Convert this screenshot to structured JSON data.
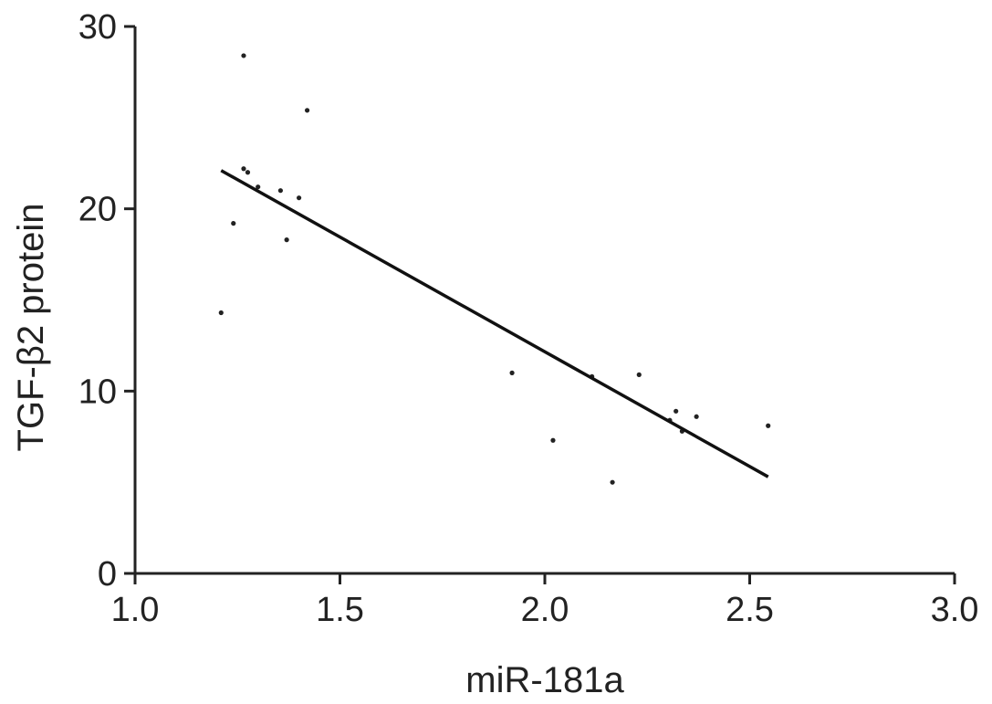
{
  "chart_data": {
    "type": "scatter",
    "title": "",
    "xlabel": "miR-181a",
    "ylabel": "TGF-β2 protein",
    "xlim": [
      1.0,
      3.0
    ],
    "ylim": [
      0,
      30
    ],
    "x_ticks": [
      "1.0",
      "1.5",
      "2.0",
      "2.5",
      "3.0"
    ],
    "y_ticks": [
      "0",
      "10",
      "20",
      "30"
    ],
    "grid": false,
    "legend": "none",
    "colors": {
      "points": "#222222",
      "line": "#111111",
      "axes": "#222222"
    },
    "points": [
      {
        "x": 1.21,
        "y": 14.3
      },
      {
        "x": 1.24,
        "y": 19.2
      },
      {
        "x": 1.265,
        "y": 22.2
      },
      {
        "x": 1.265,
        "y": 28.4
      },
      {
        "x": 1.275,
        "y": 22.0
      },
      {
        "x": 1.3,
        "y": 21.2
      },
      {
        "x": 1.355,
        "y": 21.0
      },
      {
        "x": 1.37,
        "y": 18.3
      },
      {
        "x": 1.4,
        "y": 20.6
      },
      {
        "x": 1.42,
        "y": 25.4
      },
      {
        "x": 1.92,
        "y": 11.0
      },
      {
        "x": 2.02,
        "y": 7.3
      },
      {
        "x": 2.115,
        "y": 10.8
      },
      {
        "x": 2.165,
        "y": 5.0
      },
      {
        "x": 2.23,
        "y": 10.9
      },
      {
        "x": 2.305,
        "y": 8.4
      },
      {
        "x": 2.32,
        "y": 8.9
      },
      {
        "x": 2.335,
        "y": 7.8
      },
      {
        "x": 2.37,
        "y": 8.6
      },
      {
        "x": 2.545,
        "y": 8.1
      }
    ],
    "fit_line": {
      "x": [
        1.21,
        2.545
      ],
      "y": [
        22.1,
        5.3
      ]
    }
  }
}
